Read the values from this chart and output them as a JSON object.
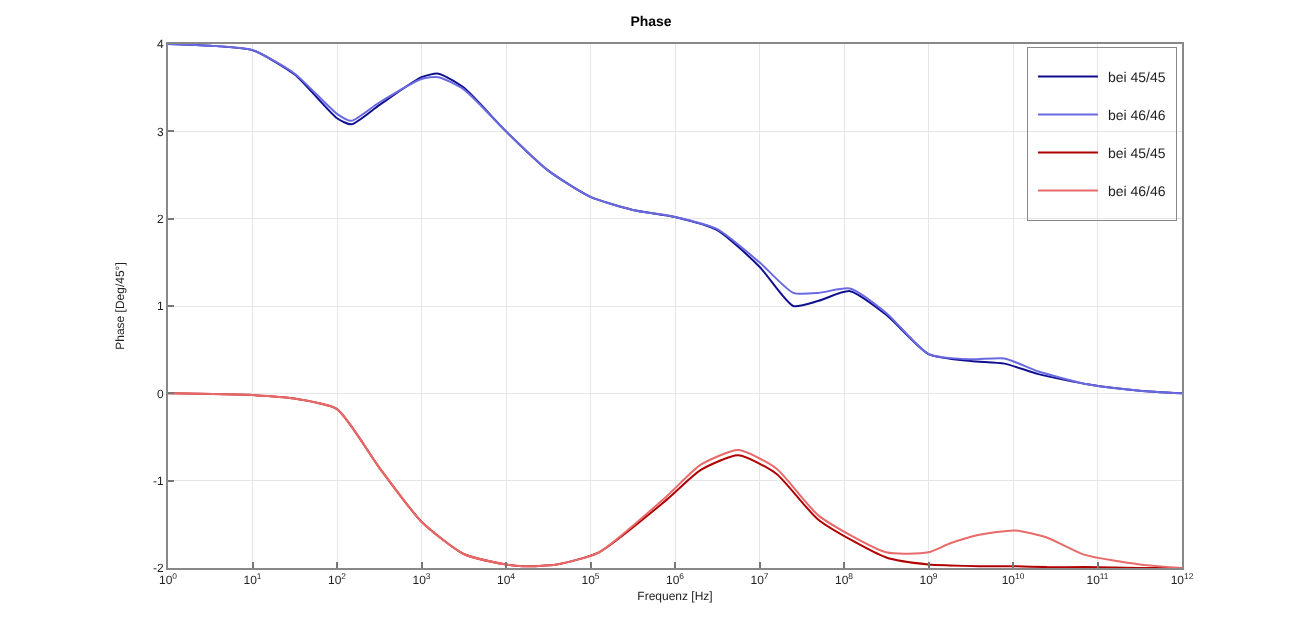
{
  "chart_data": {
    "type": "line",
    "title": "Phase",
    "xlabel": "Frequenz [Hz]",
    "ylabel": "Phase [Deg/45°]",
    "log": "x",
    "grid": true,
    "legend": "top right",
    "line_style": "solid",
    "marker": "none",
    "xlim": [
      1,
      1000000000000.0
    ],
    "xticks": [
      {
        "value": 1,
        "label": "10$^{0}$"
      },
      {
        "value": 10,
        "label": "10$^{1}$"
      },
      {
        "value": 100,
        "label": "10$^{2}$"
      },
      {
        "value": 1000,
        "label": "10$^{3}$"
      },
      {
        "value": 10000.0,
        "label": "10$^{4}$"
      },
      {
        "value": 100000.0,
        "label": "10$^{5}$"
      },
      {
        "value": 1000000.0,
        "label": "10$^{6}$"
      },
      {
        "value": 10000000.0,
        "label": "10$^{7}$"
      },
      {
        "value": 100000000.0,
        "label": "10$^{8}$"
      },
      {
        "value": 1000000000.0,
        "label": "10$^{9}$"
      },
      {
        "value": 10000000000.0,
        "label": "10$^{10}$"
      },
      {
        "value": 100000000000.0,
        "label": "10$^{11}$"
      },
      {
        "value": 1000000000000.0,
        "label": "10$^{12}$"
      }
    ],
    "ylim": [
      -2,
      4
    ],
    "yticks": [
      -2,
      -1,
      0,
      1,
      2,
      3,
      4
    ],
    "series": [
      {
        "name": "bei 45/45",
        "color": "#10108f",
        "x": [
          1,
          3.16,
          10,
          31.6,
          100,
          148,
          316,
          1000,
          1585,
          3162,
          10000.0,
          31623,
          100000.0,
          316228,
          1000000.0,
          3160000.0,
          10000000.0,
          25100000.0,
          50100000.0,
          117000000.0,
          316000000.0,
          1000000000.0,
          3160000000.0,
          7940000000.0,
          20000000000.0,
          79400000000.0,
          316000000000.0,
          1000000000000.0
        ],
        "values": [
          4,
          3.98,
          3.93,
          3.65,
          3.15,
          3.08,
          3.3,
          3.62,
          3.66,
          3.5,
          3,
          2.55,
          2.25,
          2.1,
          2.02,
          1.87,
          1.45,
          1,
          1.06,
          1.17,
          0.9,
          0.45,
          0.37,
          0.34,
          0.22,
          0.1,
          0.03,
          0
        ]
      },
      {
        "name": "bei 46/46",
        "color": "#6a6ae0",
        "x": [
          1,
          3.16,
          10,
          31.6,
          100,
          148,
          316,
          1000,
          1585,
          3162,
          10000.0,
          31623,
          100000.0,
          316228,
          1000000.0,
          3160000.0,
          10000000.0,
          25100000.0,
          50100000.0,
          117000000.0,
          316000000.0,
          1000000000.0,
          3160000000.0,
          7940000000.0,
          20000000000.0,
          79400000000.0,
          316000000000.0,
          1000000000000.0
        ],
        "values": [
          4,
          3.98,
          3.93,
          3.66,
          3.2,
          3.12,
          3.33,
          3.6,
          3.62,
          3.48,
          3,
          2.55,
          2.25,
          2.1,
          2.02,
          1.88,
          1.5,
          1.15,
          1.15,
          1.2,
          0.92,
          0.45,
          0.39,
          0.4,
          0.25,
          0.1,
          0.03,
          0
        ]
      },
      {
        "name": "bei 45/45",
        "color": "#b00000",
        "x": [
          1,
          10,
          31.6,
          100,
          316,
          1000,
          3162,
          10000.0,
          15800.0,
          39800.0,
          126000.0,
          794000.0,
          2000000.0,
          5620000.0,
          15800000.0,
          50100000.0,
          316000000.0,
          1000000000.0,
          1780000000.0,
          3980000000.0,
          10500000000.0,
          25100000000.0,
          70800000000.0,
          316000000000.0,
          1000000000000.0
        ],
        "values": [
          0,
          -0.02,
          -0.06,
          -0.18,
          -0.85,
          -1.47,
          -1.84,
          -1.96,
          -1.98,
          -1.96,
          -1.82,
          -1.22,
          -0.88,
          -0.71,
          -0.92,
          -1.45,
          -1.88,
          -1.96,
          -1.97,
          -1.98,
          -1.98,
          -1.99,
          -1.99,
          -2,
          -2
        ]
      },
      {
        "name": "bei 46/46",
        "color": "#e86a6a",
        "x": [
          1,
          10,
          31.6,
          100,
          316,
          1000,
          3162,
          10000.0,
          15800.0,
          39800.0,
          126000.0,
          794000.0,
          2000000.0,
          5620000.0,
          15800000.0,
          50100000.0,
          316000000.0,
          1000000000.0,
          1780000000.0,
          3980000000.0,
          10500000000.0,
          25100000000.0,
          70800000000.0,
          316000000000.0,
          1000000000000.0
        ],
        "values": [
          0,
          -0.02,
          -0.06,
          -0.18,
          -0.85,
          -1.47,
          -1.84,
          -1.96,
          -1.98,
          -1.96,
          -1.82,
          -1.18,
          -0.82,
          -0.65,
          -0.86,
          -1.4,
          -1.82,
          -1.82,
          -1.72,
          -1.62,
          -1.57,
          -1.65,
          -1.85,
          -1.96,
          -2
        ]
      }
    ]
  }
}
